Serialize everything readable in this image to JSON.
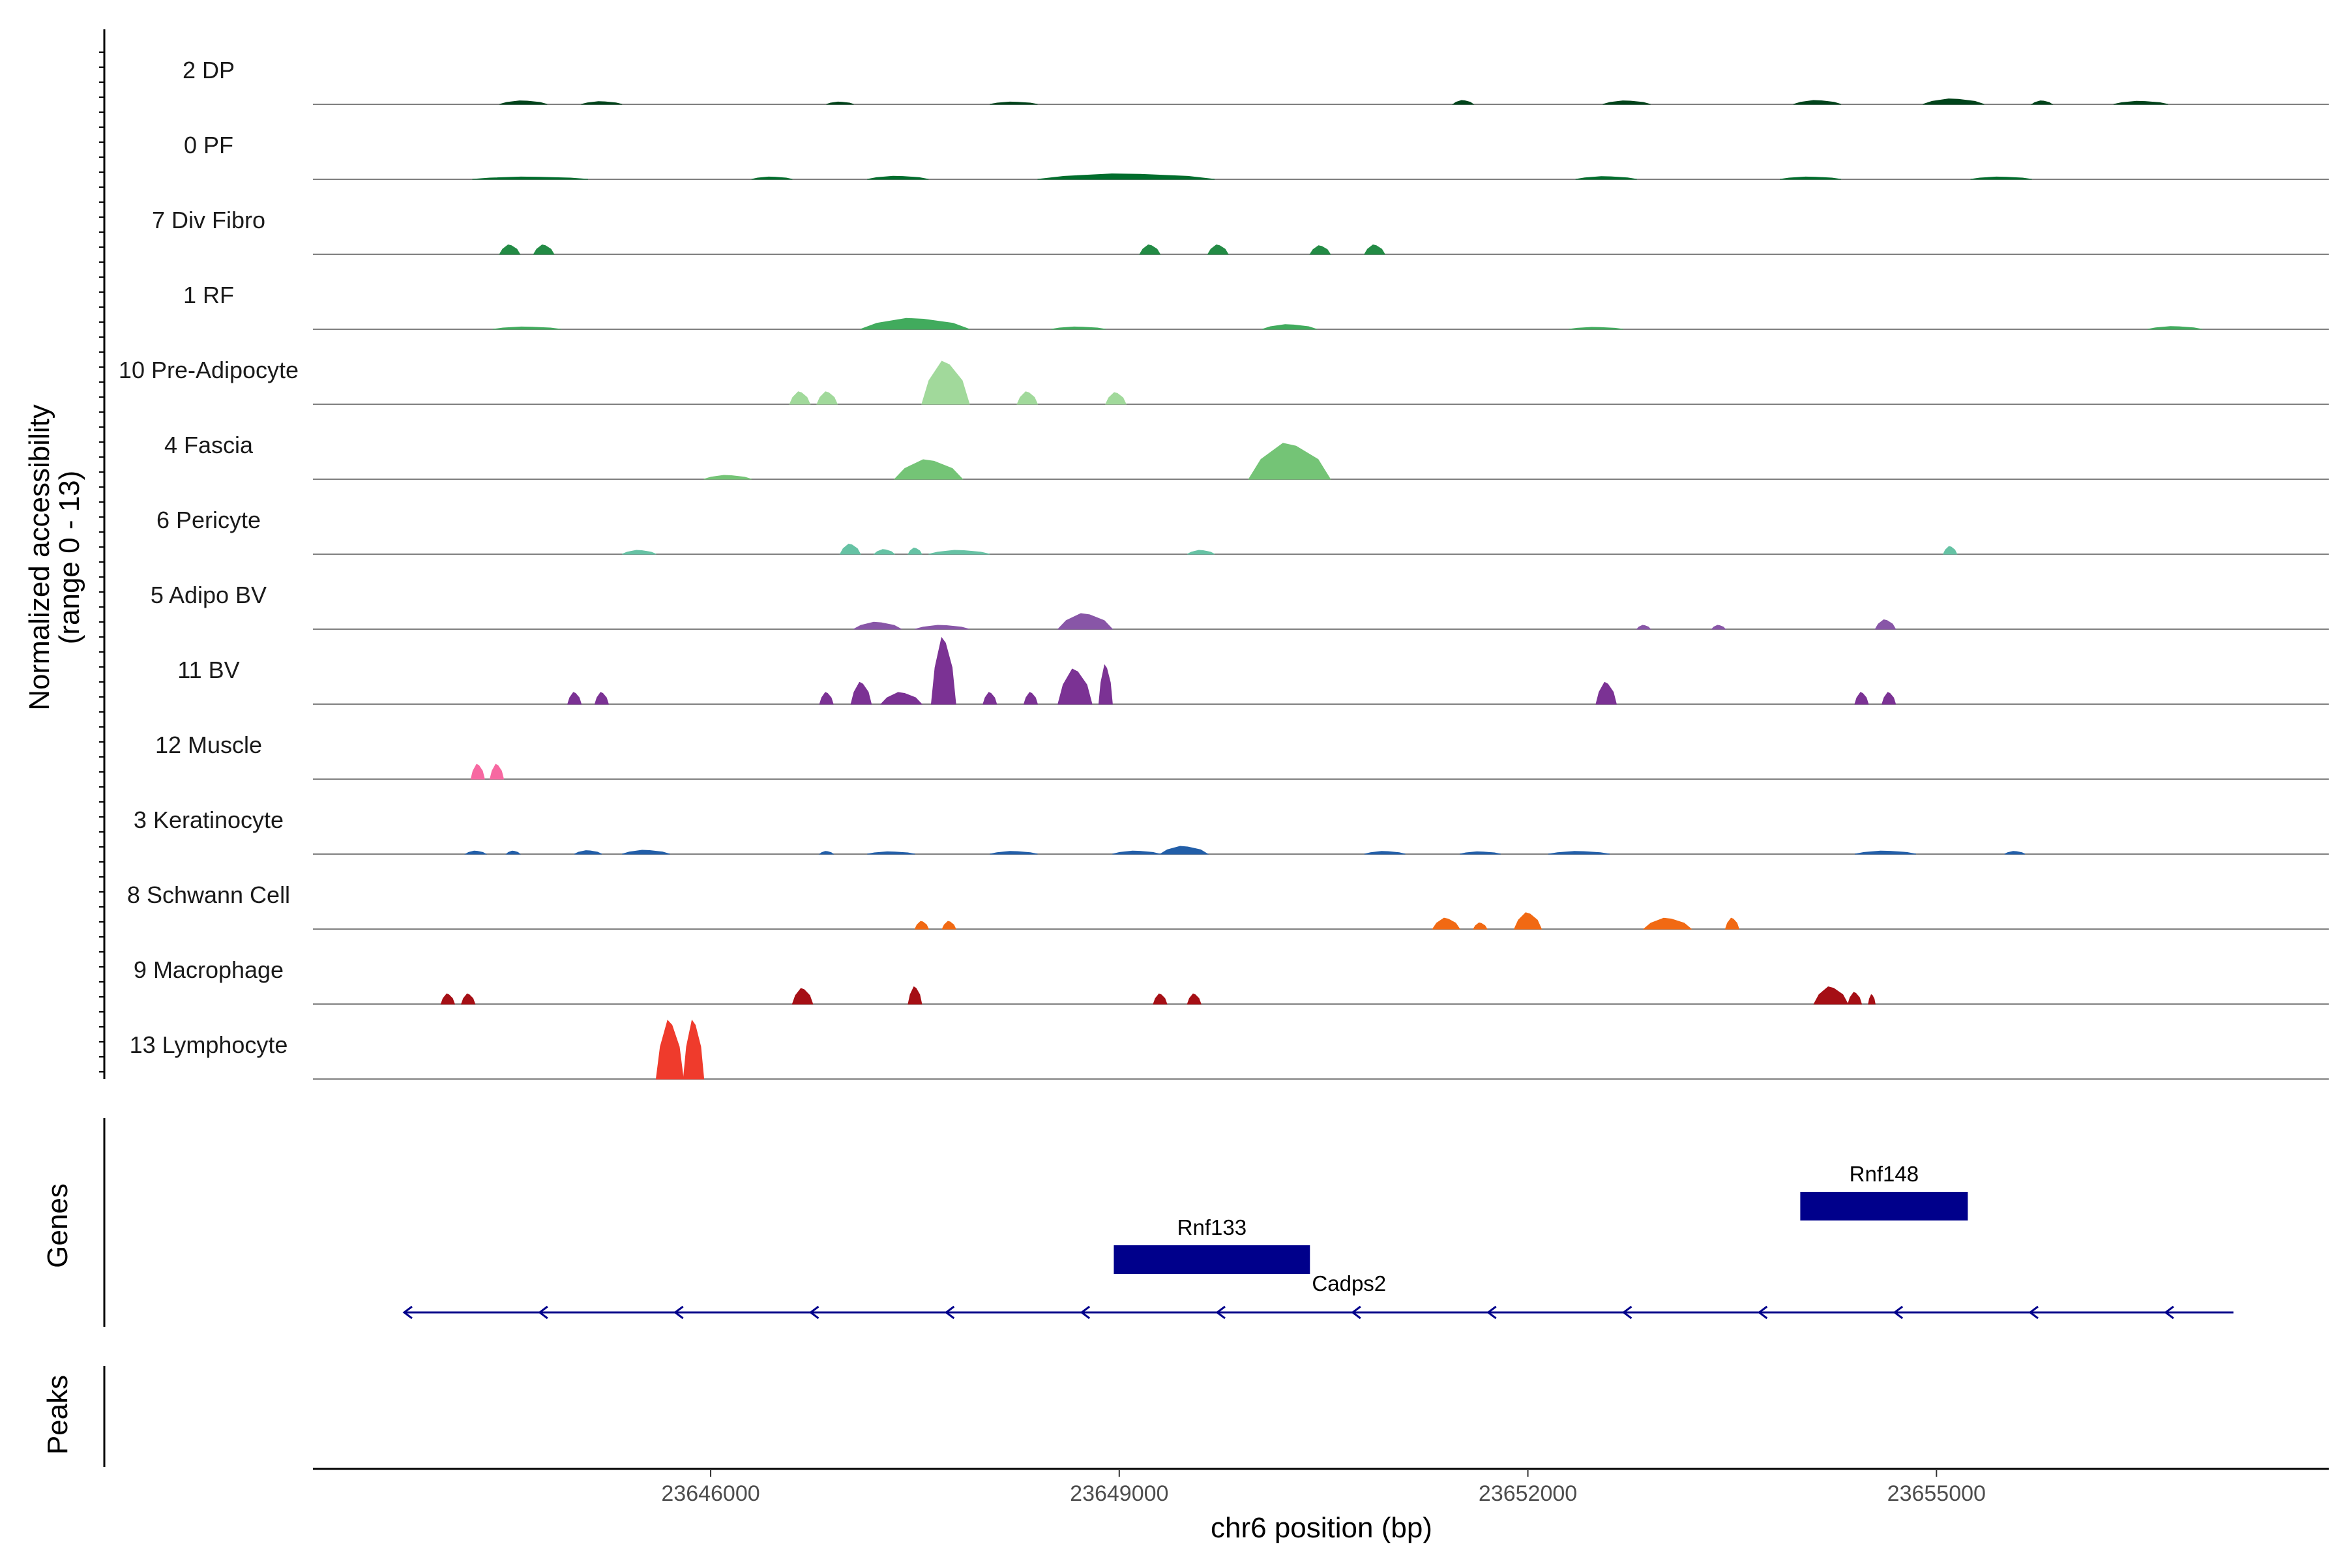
{
  "chart_data": {
    "type": "area",
    "chromosome": "chr6",
    "xlabel": "chr6 position (bp)",
    "ylabel": "Normalized accessibility\n(range 0 - 13)",
    "xlim": [
      23643080,
      23657880
    ],
    "ylim": [
      0,
      13
    ],
    "xticks": [
      {
        "value": 23646000,
        "label": "23646000"
      },
      {
        "value": 23649000,
        "label": "23649000"
      },
      {
        "value": 23652000,
        "label": "23652000"
      },
      {
        "value": 23655000,
        "label": "23655000"
      }
    ],
    "tracks": [
      {
        "name": "2 DP",
        "color": "#00441b",
        "peaks": [
          [
            23644450,
            23644800,
            0.45
          ],
          [
            23645050,
            23645350,
            0.35
          ],
          [
            23646850,
            23647050,
            0.3
          ],
          [
            23648050,
            23648400,
            0.3
          ],
          [
            23651450,
            23651600,
            0.5
          ],
          [
            23652550,
            23652900,
            0.45
          ],
          [
            23653950,
            23654300,
            0.5
          ],
          [
            23654900,
            23655350,
            0.7
          ],
          [
            23655700,
            23655850,
            0.45
          ],
          [
            23656300,
            23656700,
            0.4
          ]
        ]
      },
      {
        "name": "0 PF",
        "color": "#006d2c",
        "peaks": [
          [
            23644250,
            23645100,
            0.3
          ],
          [
            23646300,
            23646600,
            0.3
          ],
          [
            23647150,
            23647600,
            0.4
          ],
          [
            23648400,
            23649700,
            0.7
          ],
          [
            23652350,
            23652800,
            0.35
          ],
          [
            23653850,
            23654300,
            0.3
          ],
          [
            23655250,
            23655700,
            0.3
          ]
        ]
      },
      {
        "name": "7 Div Fibro",
        "color": "#238b45",
        "peaks": [
          [
            23644450,
            23644600,
            1.2
          ],
          [
            23644700,
            23644850,
            1.2
          ],
          [
            23649150,
            23649300,
            1.2
          ],
          [
            23649650,
            23649800,
            1.2
          ],
          [
            23650400,
            23650550,
            1.1
          ],
          [
            23650800,
            23650950,
            1.2
          ]
        ]
      },
      {
        "name": "1 RF",
        "color": "#41ab5d",
        "peaks": [
          [
            23644400,
            23644900,
            0.3
          ],
          [
            23647100,
            23647900,
            1.4
          ],
          [
            23648500,
            23648900,
            0.3
          ],
          [
            23650050,
            23650450,
            0.6
          ],
          [
            23652300,
            23652700,
            0.25
          ],
          [
            23656550,
            23656950,
            0.35
          ]
        ]
      },
      {
        "name": "10 Pre-Adipocyte",
        "color": "#a1d99b",
        "peaks": [
          [
            23646580,
            23646730,
            1.6
          ],
          [
            23646780,
            23646930,
            1.6
          ],
          [
            23647550,
            23647900,
            5.5
          ],
          [
            23648250,
            23648400,
            1.6
          ],
          [
            23648900,
            23649050,
            1.5
          ]
        ]
      },
      {
        "name": "4 Fascia",
        "color": "#74c476",
        "peaks": [
          [
            23645950,
            23646300,
            0.5
          ],
          [
            23647350,
            23647850,
            2.5
          ],
          [
            23649950,
            23650550,
            4.6
          ]
        ]
      },
      {
        "name": "6 Pericyte",
        "color": "#66c2a4",
        "peaks": [
          [
            23645350,
            23645600,
            0.5
          ],
          [
            23646950,
            23647100,
            1.3
          ],
          [
            23647200,
            23647350,
            0.6
          ],
          [
            23647450,
            23647550,
            0.8
          ],
          [
            23647600,
            23648050,
            0.5
          ],
          [
            23649500,
            23649700,
            0.5
          ],
          [
            23655050,
            23655150,
            1.0
          ]
        ]
      },
      {
        "name": "5 Adipo BV",
        "color": "#8856a7",
        "peaks": [
          [
            23647050,
            23647400,
            0.9
          ],
          [
            23647500,
            23647900,
            0.5
          ],
          [
            23648550,
            23648950,
            2.0
          ],
          [
            23652800,
            23652900,
            0.5
          ],
          [
            23653350,
            23653450,
            0.5
          ],
          [
            23654550,
            23654700,
            1.2
          ]
        ]
      },
      {
        "name": "11 BV",
        "color": "#7b3294",
        "peaks": [
          [
            23644950,
            23645050,
            1.5
          ],
          [
            23645150,
            23645250,
            1.5
          ],
          [
            23646800,
            23646900,
            1.5
          ],
          [
            23647030,
            23647180,
            2.8
          ],
          [
            23647250,
            23647550,
            1.5
          ],
          [
            23647620,
            23647800,
            8.5
          ],
          [
            23648000,
            23648100,
            1.5
          ],
          [
            23648300,
            23648400,
            1.5
          ],
          [
            23648550,
            23648800,
            4.5
          ],
          [
            23648850,
            23648950,
            5.0
          ],
          [
            23652500,
            23652650,
            2.8
          ],
          [
            23654400,
            23654500,
            1.5
          ],
          [
            23654600,
            23654700,
            1.5
          ]
        ]
      },
      {
        "name": "12 Muscle",
        "color": "#f768a1",
        "peaks": [
          [
            23644240,
            23644340,
            1.9
          ],
          [
            23644380,
            23644480,
            1.9
          ]
        ]
      },
      {
        "name": "3 Keratinocyte",
        "color": "#225ea8",
        "peaks": [
          [
            23644200,
            23644350,
            0.4
          ],
          [
            23644500,
            23644600,
            0.4
          ],
          [
            23645000,
            23645200,
            0.45
          ],
          [
            23645350,
            23645700,
            0.5
          ],
          [
            23646800,
            23646900,
            0.35
          ],
          [
            23647150,
            23647500,
            0.3
          ],
          [
            23648050,
            23648400,
            0.35
          ],
          [
            23648950,
            23649300,
            0.4
          ],
          [
            23649300,
            23649650,
            1.0
          ],
          [
            23650800,
            23651100,
            0.35
          ],
          [
            23651500,
            23651800,
            0.3
          ],
          [
            23652150,
            23652600,
            0.35
          ],
          [
            23654400,
            23654850,
            0.4
          ],
          [
            23655500,
            23655650,
            0.35
          ]
        ]
      },
      {
        "name": "8 Schwann Cell",
        "color": "#f16913",
        "peaks": [
          [
            23647500,
            23647600,
            1.0
          ],
          [
            23647700,
            23647800,
            1.0
          ],
          [
            23651300,
            23651500,
            1.4
          ],
          [
            23651600,
            23651700,
            0.8
          ],
          [
            23651900,
            23652100,
            2.1
          ],
          [
            23652850,
            23653200,
            1.4
          ],
          [
            23653450,
            23653550,
            1.4
          ]
        ]
      },
      {
        "name": "9 Macrophage",
        "color": "#a50f15",
        "peaks": [
          [
            23644020,
            23644120,
            1.3
          ],
          [
            23644170,
            23644270,
            1.3
          ],
          [
            23646600,
            23646750,
            2.0
          ],
          [
            23647450,
            23647550,
            2.2
          ],
          [
            23649250,
            23649350,
            1.3
          ],
          [
            23649500,
            23649600,
            1.3
          ],
          [
            23654100,
            23654350,
            2.2
          ],
          [
            23654350,
            23654450,
            1.5
          ],
          [
            23654500,
            23654550,
            1.2
          ]
        ]
      },
      {
        "name": "13 Lymphocyte",
        "color": "#ef3b2c",
        "peaks": [
          [
            23645600,
            23645800,
            7.5
          ],
          [
            23645800,
            23645950,
            7.5
          ]
        ]
      }
    ],
    "genes_panel": {
      "title": "Genes",
      "genes": [
        {
          "name": "Cadps2",
          "start": 23643750,
          "end": 23657180,
          "strand": "-",
          "row": 0,
          "thin": true
        },
        {
          "name": "Rnf133",
          "start": 23648960,
          "end": 23650400,
          "strand": "-",
          "row": 1,
          "thin": false
        },
        {
          "name": "Rnf148",
          "start": 23654000,
          "end": 23655230,
          "strand": "-",
          "row": 2,
          "thin": false
        }
      ],
      "color": "#00008b"
    },
    "peaks_panel": {
      "title": "Peaks",
      "peaks": []
    }
  }
}
